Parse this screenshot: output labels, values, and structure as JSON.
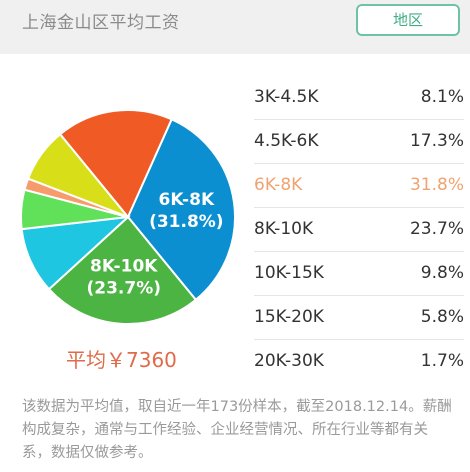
{
  "header": {
    "title": "上海金山区平均工资",
    "region_button": "地区"
  },
  "chart_data": {
    "type": "pie",
    "categories": [
      "3K-4.5K",
      "4.5K-6K",
      "6K-8K",
      "8K-10K",
      "10K-15K",
      "15K-20K",
      "20K-30K"
    ],
    "values": [
      8.1,
      17.3,
      31.8,
      23.7,
      9.8,
      5.8,
      1.7
    ],
    "value_labels": [
      "8.1%",
      "17.3%",
      "31.8%",
      "23.7%",
      "9.8%",
      "5.8%",
      "1.7%"
    ],
    "slice_labels": [
      {
        "category": "6K-8K",
        "pct": "(31.8%)"
      },
      {
        "category": "8K-10K",
        "pct": "(23.7%)"
      }
    ],
    "colors": [
      "#d8df18",
      "#f05a24",
      "#0b8fd1",
      "#4bb442",
      "#1fc6e1",
      "#61e05a",
      "#f79a6c"
    ],
    "highlighted": "6K-8K"
  },
  "average": {
    "label": "平均￥7360"
  },
  "note": {
    "text": "该数据为平均值，取自近一年173份样本，截至2018.12.14。薪酬构成复杂，通常与工作经验、企业经营情况、所在行业等都有关系，数据仅做参考。"
  }
}
